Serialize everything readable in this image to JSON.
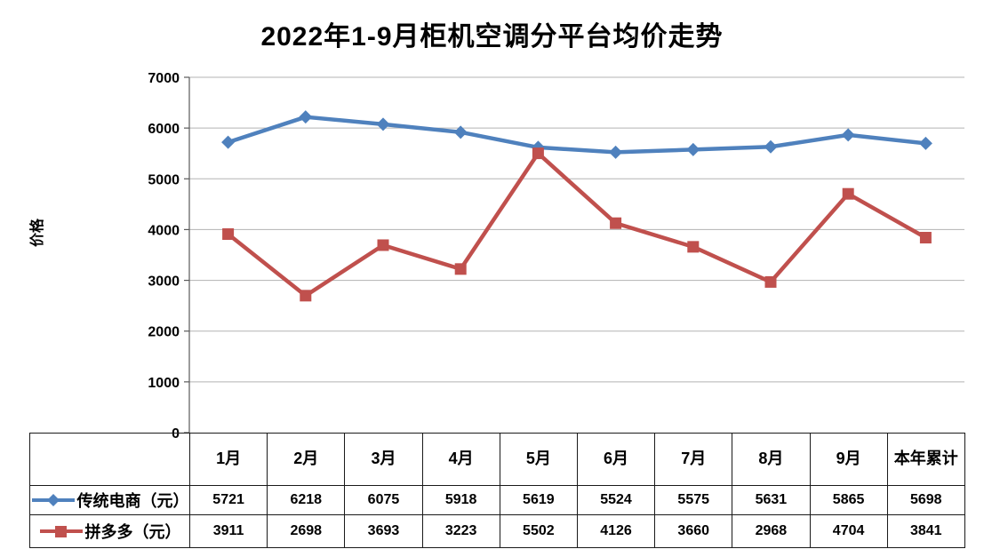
{
  "chart_data": {
    "type": "line",
    "title": "2022年1-9月柜机空调分平台均价走势",
    "ylabel": "价格",
    "xlabel": "",
    "ylim": [
      0,
      7000
    ],
    "yticks": [
      0,
      1000,
      2000,
      3000,
      4000,
      5000,
      6000,
      7000
    ],
    "grid": true,
    "legend_position": "data-table-left",
    "categories": [
      "1月",
      "2月",
      "3月",
      "4月",
      "5月",
      "6月",
      "7月",
      "8月",
      "9月",
      "本年累计"
    ],
    "series": [
      {
        "name": "传统电商（元）",
        "color": "#4F81BD",
        "marker": "diamond",
        "values": [
          5721,
          6218,
          6075,
          5918,
          5619,
          5524,
          5575,
          5631,
          5865,
          5698
        ]
      },
      {
        "name": "拼多多（元）",
        "color": "#C0504D",
        "marker": "square",
        "values": [
          3911,
          2698,
          3693,
          3223,
          5502,
          4126,
          3660,
          2968,
          4704,
          3841
        ]
      }
    ]
  },
  "colors": {
    "grid": "#B3B3B3",
    "axis": "#595959",
    "tick_label": "#000000"
  }
}
